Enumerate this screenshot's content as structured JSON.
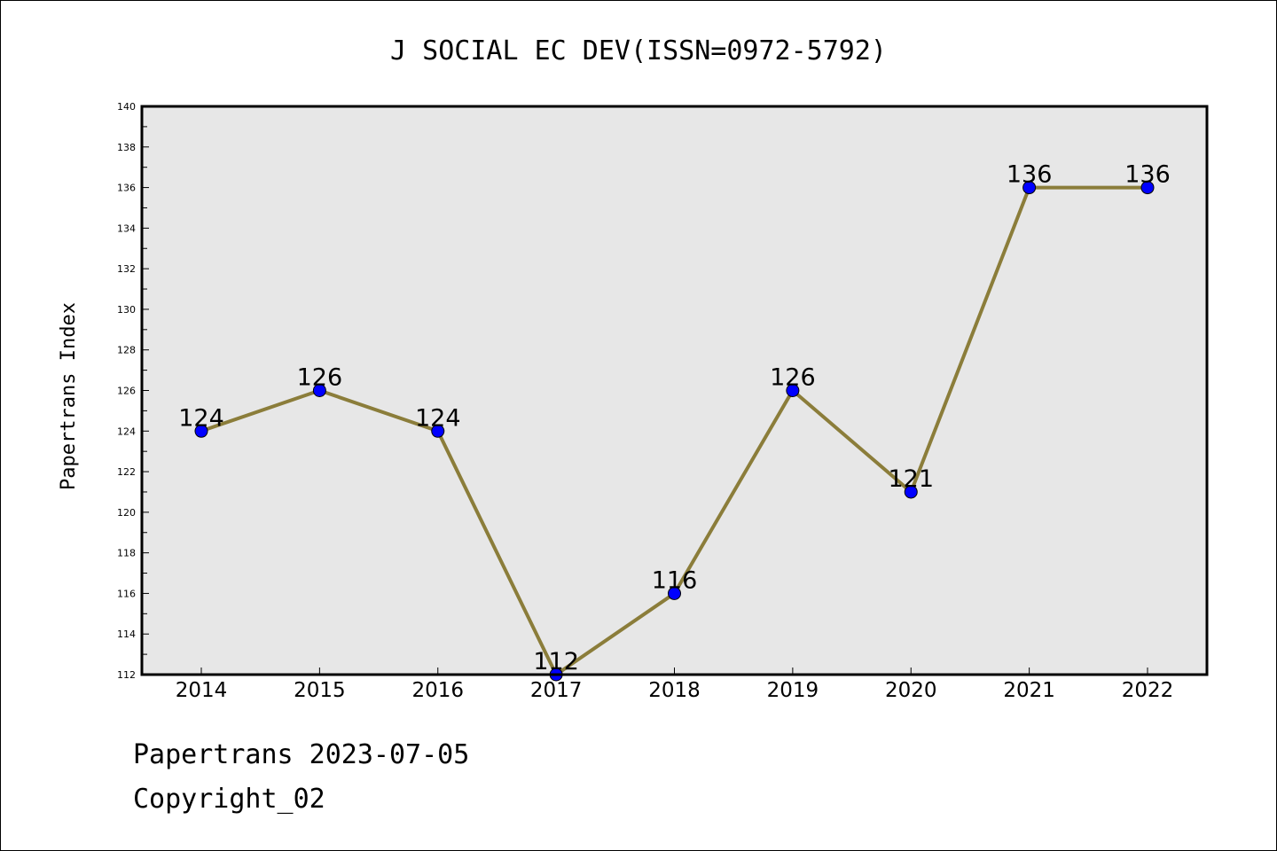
{
  "chart_data": {
    "type": "line",
    "title": "J SOCIAL EC DEV(ISSN=0972-5792)",
    "xlabel": "",
    "ylabel": "Papertrans Index",
    "categories": [
      "2014",
      "2015",
      "2016",
      "2017",
      "2018",
      "2019",
      "2020",
      "2021",
      "2022"
    ],
    "values": [
      124,
      126,
      124,
      112,
      116,
      126,
      121,
      136,
      136
    ],
    "data_labels": [
      "124",
      "126",
      "124",
      "112",
      "116",
      "126",
      "121",
      "136",
      "136"
    ],
    "ylim": [
      112,
      140
    ],
    "yticks": [
      112,
      114,
      116,
      118,
      120,
      122,
      124,
      126,
      128,
      130,
      132,
      134,
      136,
      138,
      140
    ],
    "grid": false,
    "legend": "none",
    "colors": {
      "line": "#8B7D3A",
      "marker": "#0000FF",
      "plot_background": "#E7E7E7"
    }
  },
  "footer": {
    "line1": "Papertrans 2023-07-05",
    "line2": "Copyright_02"
  }
}
